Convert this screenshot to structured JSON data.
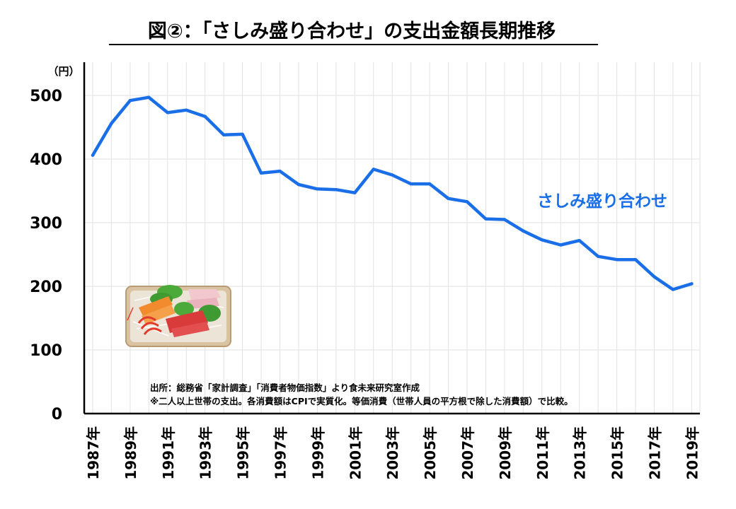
{
  "chart_data": {
    "type": "line",
    "title": "図②：「さしみ盛り合わせ」の支出金額長期推移",
    "ylabel_unit": "（円）",
    "ylim": [
      0,
      550
    ],
    "yticks": [
      0,
      100,
      200,
      300,
      400,
      500
    ],
    "grid": true,
    "x": [
      1987,
      1988,
      1989,
      1990,
      1991,
      1992,
      1993,
      1994,
      1995,
      1996,
      1997,
      1998,
      1999,
      2000,
      2001,
      2002,
      2003,
      2004,
      2005,
      2006,
      2007,
      2008,
      2009,
      2010,
      2011,
      2012,
      2013,
      2014,
      2015,
      2016,
      2017,
      2018,
      2019
    ],
    "xtick_labels": [
      "1987年",
      "1989年",
      "1991年",
      "1993年",
      "1995年",
      "1997年",
      "1999年",
      "2001年",
      "2003年",
      "2005年",
      "2007年",
      "2009年",
      "2011年",
      "2013年",
      "2015年",
      "2017年",
      "2019年"
    ],
    "series": [
      {
        "name": "さしみ盛り合わせ",
        "color": "#1a6fe8",
        "values": [
          406,
          456,
          492,
          497,
          473,
          477,
          467,
          438,
          439,
          378,
          381,
          360,
          353,
          352,
          347,
          384,
          375,
          361,
          361,
          338,
          333,
          306,
          305,
          287,
          273,
          265,
          272,
          247,
          242,
          242,
          215,
          195,
          204
        ]
      }
    ],
    "notes": [
      "出所：総務省「家計調査」「消費者物価指数」より食未来研究室作成",
      "※二人以上世帯の支出。各消費額はCPIで実質化。等価消費（世帯人員の平方根で除した消費額）で比較。"
    ]
  }
}
